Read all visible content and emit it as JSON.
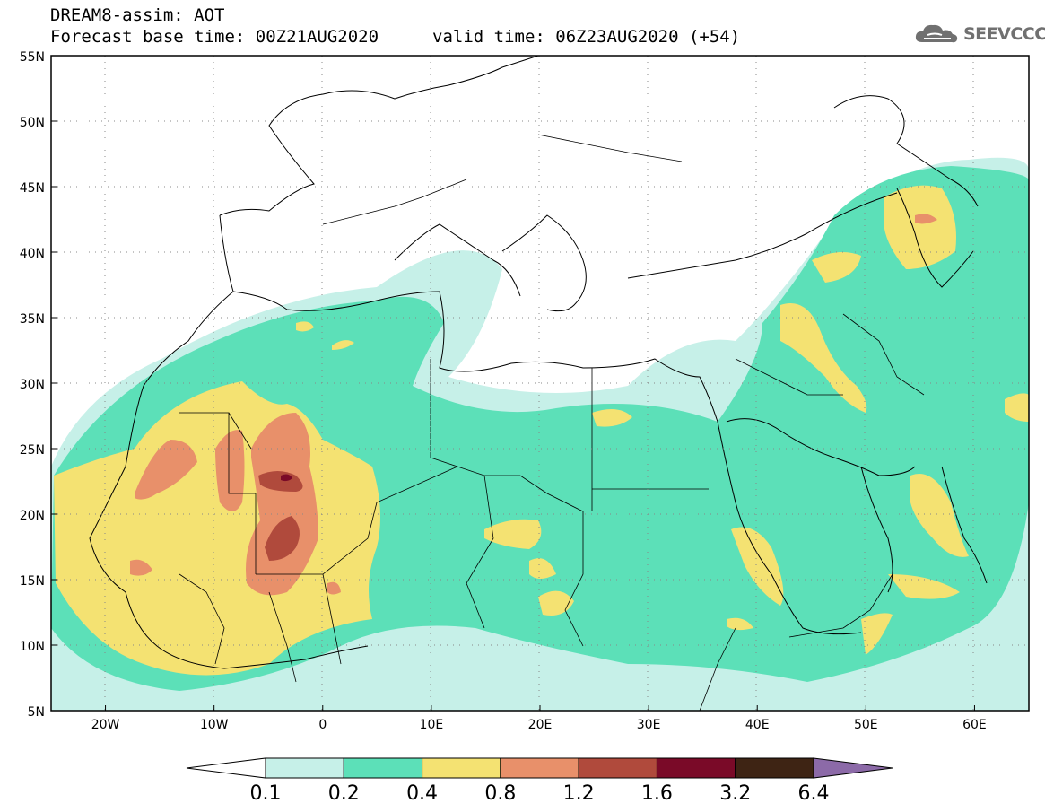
{
  "title": {
    "line1": "DREAM8-assim: AOT",
    "line2": "Forecast base time: 00Z21AUG2020",
    "valid": "valid time: 06Z23AUG2020 (+54)"
  },
  "logo": {
    "text": "SEEVCCC",
    "icon": "cloud-icon"
  },
  "map": {
    "lat_labels": [
      "55N",
      "50N",
      "45N",
      "40N",
      "35N",
      "30N",
      "25N",
      "20N",
      "15N",
      "10N",
      "5N"
    ],
    "lon_labels": [
      "20W",
      "10W",
      "0",
      "10E",
      "20E",
      "30E",
      "40E",
      "50E",
      "60E"
    ],
    "lon_range": [
      -25,
      65
    ],
    "lat_range": [
      5,
      55
    ]
  },
  "colorbar": {
    "labels": [
      "0.1",
      "0.2",
      "0.4",
      "0.8",
      "1.2",
      "1.6",
      "3.2",
      "6.4"
    ],
    "colors": [
      "#ffffff",
      "#c6f0e8",
      "#5ce0b8",
      "#f4e272",
      "#e8906a",
      "#b04a3c",
      "#7a0a28",
      "#3e2414",
      "#8c6aa8"
    ]
  },
  "legend_colors": {
    "c1": "#c6f0e8",
    "c2": "#5ce0b8",
    "c3": "#f4e272",
    "c4": "#e8906a",
    "c5": "#b04a3c",
    "c6": "#7a0a28"
  }
}
